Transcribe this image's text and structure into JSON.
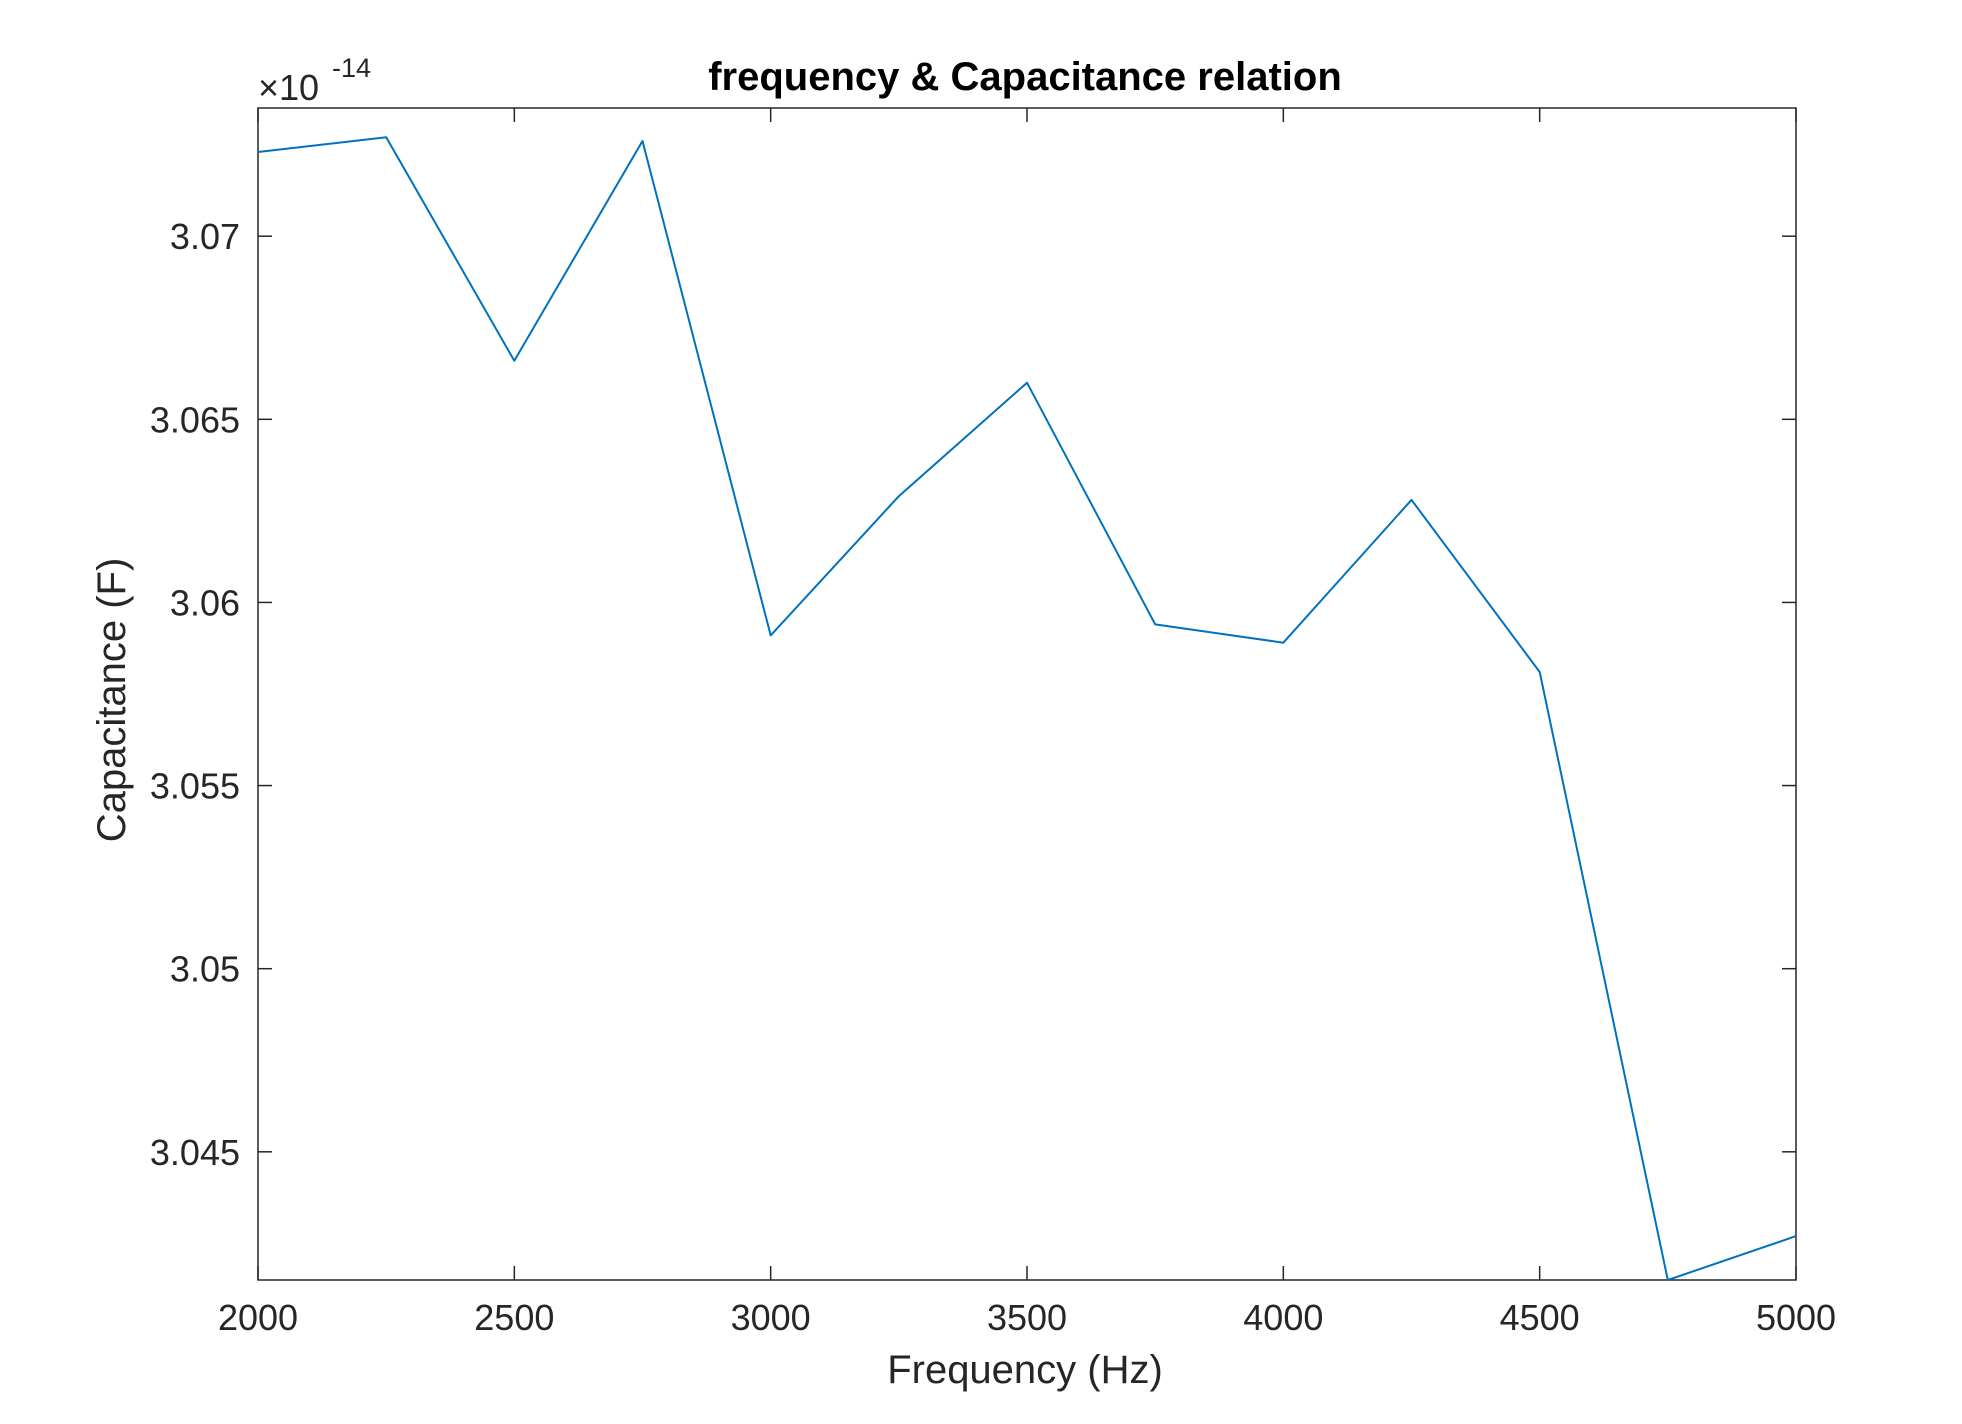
{
  "chart_data": {
    "type": "line",
    "title": "frequency & Capacitance relation",
    "xlabel": "Frequency (Hz)",
    "ylabel": "Capacitance (F)",
    "y_exponent": {
      "base": "×10",
      "power": "-14"
    },
    "xlim": [
      2000,
      5000
    ],
    "ylim": [
      3.0415,
      3.0735
    ],
    "x_ticks": [
      2000,
      2500,
      3000,
      3500,
      4000,
      4500,
      5000
    ],
    "x_tick_labels": [
      "2000",
      "2500",
      "3000",
      "3500",
      "4000",
      "4500",
      "5000"
    ],
    "y_ticks": [
      3.045,
      3.05,
      3.055,
      3.06,
      3.065,
      3.07
    ],
    "y_tick_labels": [
      "3.045",
      "3.05",
      "3.055",
      "3.06",
      "3.065",
      "3.07"
    ],
    "grid": false,
    "box": true,
    "series": [
      {
        "color": "#0072BD",
        "x": [
          2000,
          2250,
          2500,
          2750,
          3000,
          3250,
          3500,
          3750,
          4000,
          4250,
          4500,
          4750,
          5000
        ],
        "y": [
          3.0723,
          3.0727,
          3.0666,
          3.0726,
          3.0591,
          3.0629,
          3.066,
          3.0594,
          3.0589,
          3.0628,
          3.0581,
          3.0415,
          3.0427
        ]
      }
    ]
  }
}
